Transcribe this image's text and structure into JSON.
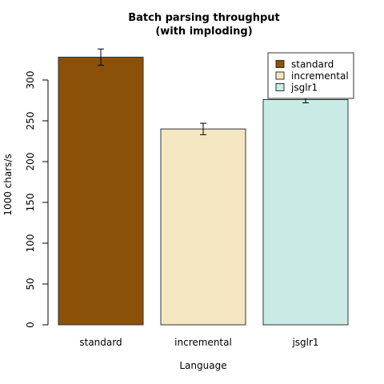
{
  "chart_data": {
    "type": "bar",
    "title_lines": [
      "Batch parsing throughput",
      "(with imploding)"
    ],
    "xlabel": "Language",
    "ylabel": "1000 chars/s",
    "ylim": [
      0,
      330
    ],
    "yticks": [
      0,
      50,
      100,
      150,
      200,
      250,
      300
    ],
    "categories": [
      "standard",
      "incremental",
      "jsglr1"
    ],
    "values": [
      328,
      240,
      276
    ],
    "errors": [
      10,
      7,
      4
    ],
    "colors": [
      "#8B5108",
      "#F5E6C2",
      "#C8EBE5"
    ],
    "legend": {
      "position": "top-right",
      "entries": [
        "standard",
        "incremental",
        "jsglr1"
      ]
    },
    "grid": false
  }
}
